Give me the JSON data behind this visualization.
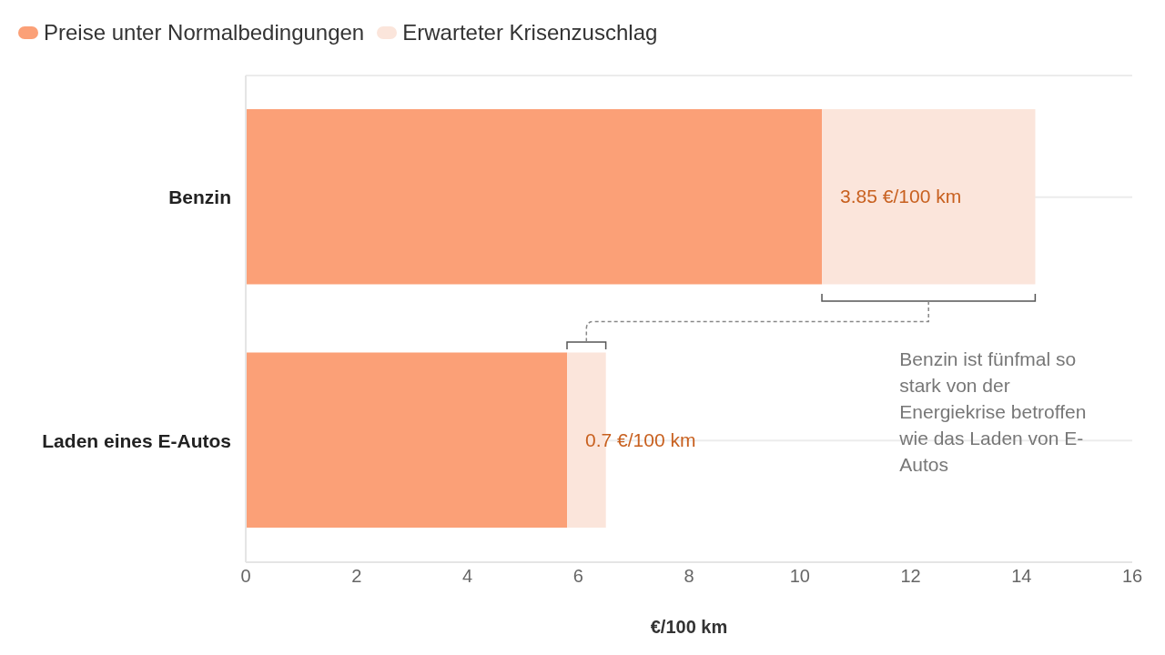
{
  "chart_data": {
    "type": "bar",
    "orientation": "horizontal",
    "stacked": true,
    "categories": [
      "Benzin",
      "Laden eines E-Autos"
    ],
    "series": [
      {
        "name": "Preise unter Normalbedingungen",
        "color": "#fba077",
        "values": [
          10.4,
          5.8
        ]
      },
      {
        "name": "Erwarteter Krisenzuschlag",
        "color": "#fbe5db",
        "values": [
          3.85,
          0.7
        ],
        "value_labels": [
          "3.85 €/100 km",
          "0.7 €/100 km"
        ]
      }
    ],
    "xlim": [
      0,
      16
    ],
    "xticks": [
      0,
      2,
      4,
      6,
      8,
      10,
      12,
      14,
      16
    ],
    "xlabel": "€/100 km",
    "grid": "y",
    "legend": "top left",
    "annotations": [
      "Benzin ist fünfmal so stark von der Energiekrise betroffen wie das Laden von E-Autos"
    ]
  }
}
